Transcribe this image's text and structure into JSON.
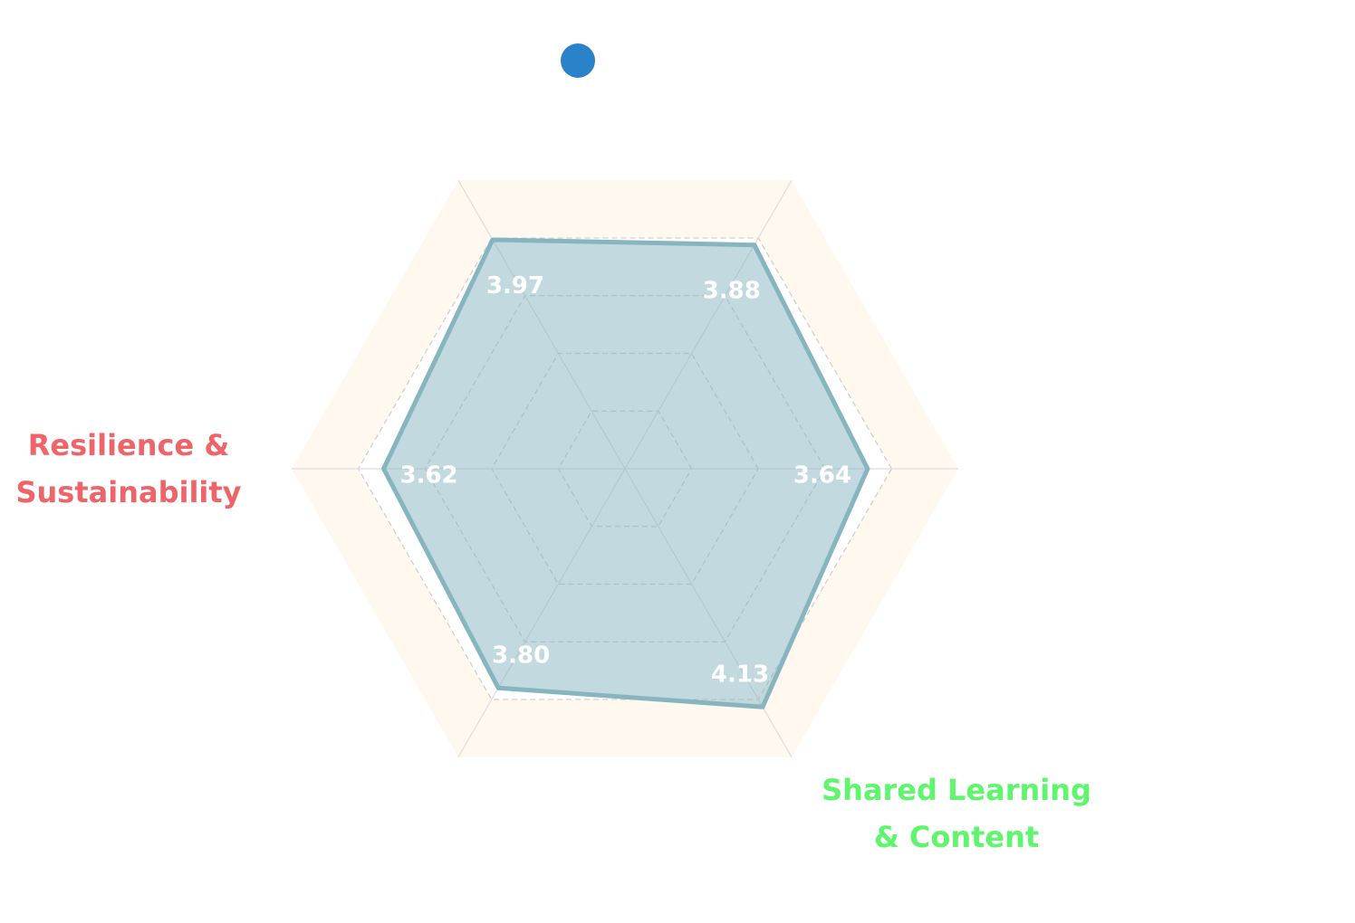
{
  "chart_data": {
    "type": "radar",
    "categories": [
      null,
      null,
      null,
      "Resilience & Sustainability",
      null,
      "Shared Learning & Content"
    ],
    "category_colors": [
      null,
      null,
      null,
      "#ef6468",
      null,
      "#5ff56c"
    ],
    "series": [
      {
        "color": "#86b5c0",
        "values": [
          3.64,
          3.88,
          3.97,
          3.62,
          3.8,
          4.13
        ],
        "value_labels": [
          "3.64",
          "3.88",
          "3.97",
          "3.62",
          "3.80",
          "4.13"
        ]
      }
    ],
    "legend_color": "#2a82c9",
    "rlim": [
      0,
      5
    ],
    "rticks": [
      1,
      2,
      3,
      4,
      5
    ],
    "band_color": "#fff8ef"
  }
}
